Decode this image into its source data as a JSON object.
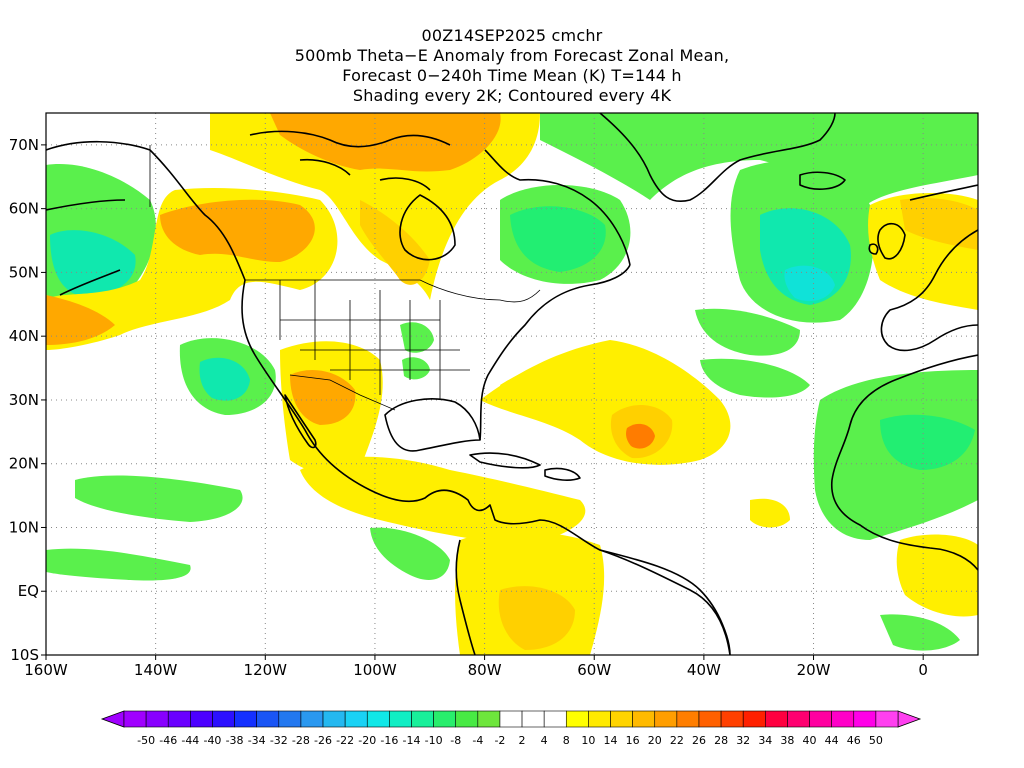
{
  "header": {
    "line1": "00Z14SEP2025 cmchr",
    "line2": "500mb Theta−E Anomaly from Forecast Zonal Mean,",
    "line3": "Forecast 0−240h Time Mean (K) T=144 h",
    "line4": "Shading every 2K; Contoured every 4K"
  },
  "map": {
    "lon_range": [
      -160,
      10
    ],
    "lat_range": [
      -10,
      75
    ],
    "lon_ticks": [
      {
        "value": -160,
        "label": "160W"
      },
      {
        "value": -140,
        "label": "140W"
      },
      {
        "value": -120,
        "label": "120W"
      },
      {
        "value": -100,
        "label": "100W"
      },
      {
        "value": -80,
        "label": "80W"
      },
      {
        "value": -60,
        "label": "60W"
      },
      {
        "value": -40,
        "label": "40W"
      },
      {
        "value": -20,
        "label": "20W"
      },
      {
        "value": 0,
        "label": "0"
      }
    ],
    "lat_ticks": [
      {
        "value": 70,
        "label": "70N"
      },
      {
        "value": 60,
        "label": "60N"
      },
      {
        "value": 50,
        "label": "50N"
      },
      {
        "value": 40,
        "label": "40N"
      },
      {
        "value": 30,
        "label": "30N"
      },
      {
        "value": 20,
        "label": "20N"
      },
      {
        "value": 10,
        "label": "10N"
      },
      {
        "value": 0,
        "label": "EQ"
      },
      {
        "value": -10,
        "label": "10S"
      }
    ],
    "gridlines": "dotted",
    "features": [
      {
        "name": "positive-anomaly-alaska-canada",
        "level": "+6 to +12 K"
      },
      {
        "name": "negative-anomaly-labrador",
        "level": "-6 to -10 K"
      },
      {
        "name": "negative-anomaly-north-atlantic",
        "level": "-8 to -16 K"
      },
      {
        "name": "negative-anomaly-greenland",
        "level": "-6 to -10 K"
      },
      {
        "name": "positive-anomaly-hurricane-central-atlantic",
        "level": "+10 to +16 K"
      },
      {
        "name": "positive-anomaly-mexico-southwest",
        "level": "+6 to +12 K"
      },
      {
        "name": "negative-anomaly-east-pacific",
        "level": "-6 to -12 K"
      },
      {
        "name": "negative-anomaly-north-pacific",
        "level": "-8 to -14 K"
      },
      {
        "name": "negative-anomaly-west-africa",
        "level": "-6 to -8 K"
      }
    ]
  },
  "colorbar": {
    "labels": [
      "-50",
      "-46",
      "-44",
      "-40",
      "-38",
      "-34",
      "-32",
      "-28",
      "-26",
      "-22",
      "-20",
      "-16",
      "-14",
      "-10",
      "-8",
      "-4",
      "-2",
      "2",
      "4",
      "8",
      "10",
      "14",
      "16",
      "20",
      "22",
      "26",
      "28",
      "32",
      "34",
      "38",
      "40",
      "44",
      "46",
      "50"
    ],
    "colors": [
      "#a000ff",
      "#8800ff",
      "#6a00ff",
      "#4c00ff",
      "#2c10ff",
      "#1430ff",
      "#1a55f5",
      "#2378f0",
      "#2a98f0",
      "#24b8f0",
      "#1ad2f5",
      "#10e8e8",
      "#10eec4",
      "#18f09a",
      "#28ee6c",
      "#48ea44",
      "#6ee63c",
      "#ffffff",
      "#ffffff",
      "#ffffff",
      "#ffff00",
      "#ffea00",
      "#ffd400",
      "#ffba00",
      "#ff9e00",
      "#ff7e00",
      "#ff6000",
      "#ff4000",
      "#ff2000",
      "#ff0040",
      "#ff0070",
      "#ff00a0",
      "#ff00c8",
      "#ff00e8",
      "#ff40f0"
    ]
  },
  "palette": {
    "pos_light": "#ffef00",
    "pos_mid": "#ffd000",
    "pos_strong": "#ffa800",
    "pos_extreme": "#ff7c00",
    "neg_light": "#5af04c",
    "neg_mid": "#22ee72",
    "neg_strong": "#10e8ae",
    "neg_extreme": "#10e2d8",
    "coast": "#000000"
  }
}
